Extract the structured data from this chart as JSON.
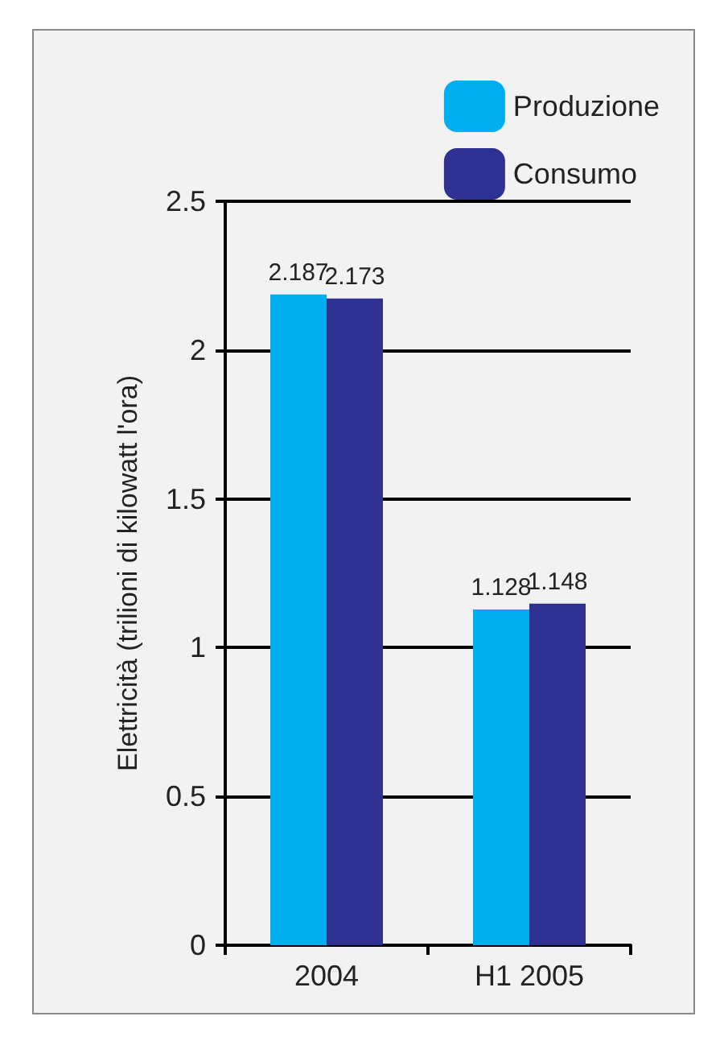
{
  "chart_data": {
    "type": "bar",
    "ylabel": "Elettricità (trilioni di kilowatt l'ora)",
    "categories": [
      "2004",
      "H1 2005"
    ],
    "series": [
      {
        "name": "Produzione",
        "color": "#00aeef",
        "values": [
          2.187,
          1.128
        ]
      },
      {
        "name": "Consumo",
        "color": "#2e3192",
        "values": [
          2.173,
          1.148
        ]
      }
    ],
    "ylim": [
      0,
      2.5
    ],
    "yticks": [
      0,
      0.5,
      1,
      1.5,
      2,
      2.5
    ],
    "grid": "y",
    "legend": "top right",
    "data_labels": true
  }
}
